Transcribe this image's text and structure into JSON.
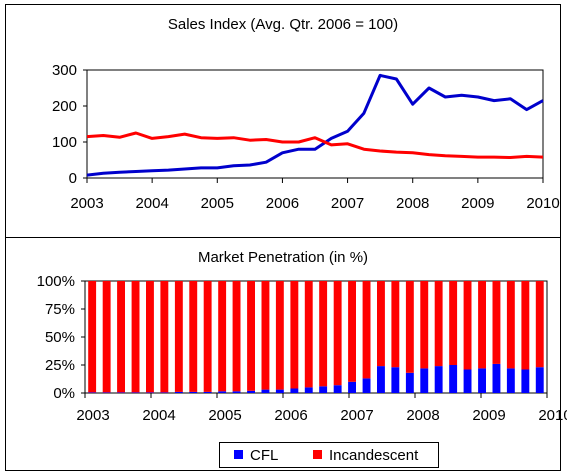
{
  "chart_data": [
    {
      "type": "line",
      "title": "Sales Index (Avg. Qtr. 2006 = 100)",
      "xlabel": "",
      "ylabel": "",
      "x_ticks": [
        "2003",
        "2004",
        "2005",
        "2006",
        "2007",
        "2008",
        "2009",
        "2010"
      ],
      "xlim": [
        2003,
        2010
      ],
      "y_ticks": [
        "0",
        "100",
        "200",
        "300"
      ],
      "ylim": [
        0,
        300
      ],
      "grid": false,
      "series": [
        {
          "color": "#0000cc",
          "x": [
            2003.0,
            2003.25,
            2003.5,
            2003.75,
            2004.0,
            2004.25,
            2004.5,
            2004.75,
            2005.0,
            2005.25,
            2005.5,
            2005.75,
            2006.0,
            2006.25,
            2006.5,
            2006.75,
            2007.0,
            2007.25,
            2007.5,
            2007.75,
            2008.0,
            2008.25,
            2008.5,
            2008.75,
            2009.0,
            2009.25,
            2009.5,
            2009.75,
            2010.0
          ],
          "values": [
            8,
            13,
            16,
            18,
            20,
            22,
            25,
            28,
            28,
            34,
            36,
            44,
            70,
            80,
            80,
            110,
            130,
            180,
            285,
            275,
            205,
            250,
            225,
            230,
            225,
            215,
            220,
            190,
            215
          ]
        },
        {
          "color": "#ff0000",
          "x": [
            2003.0,
            2003.25,
            2003.5,
            2003.75,
            2004.0,
            2004.25,
            2004.5,
            2004.75,
            2005.0,
            2005.25,
            2005.5,
            2005.75,
            2006.0,
            2006.25,
            2006.5,
            2006.75,
            2007.0,
            2007.25,
            2007.5,
            2007.75,
            2008.0,
            2008.25,
            2008.5,
            2008.75,
            2009.0,
            2009.25,
            2009.5,
            2009.75,
            2010.0
          ],
          "values": [
            115,
            118,
            113,
            125,
            110,
            115,
            122,
            112,
            110,
            112,
            105,
            107,
            100,
            100,
            112,
            92,
            95,
            80,
            75,
            72,
            70,
            65,
            62,
            60,
            58,
            58,
            57,
            60,
            58
          ]
        }
      ]
    },
    {
      "type": "bar",
      "stacked": true,
      "title": "Market Penetration (in %)",
      "xlabel": "",
      "ylabel": "",
      "x_ticks": [
        "2003",
        "2004",
        "2005",
        "2006",
        "2007",
        "2008",
        "2009",
        "2010"
      ],
      "y_ticks": [
        "0%",
        "25%",
        "50%",
        "75%",
        "100%"
      ],
      "ylim": [
        0,
        100
      ],
      "legend_position": "bottom",
      "series": [
        {
          "name": "CFL",
          "color": "#0000ff",
          "values": [
            0.5,
            0.5,
            0.5,
            0.5,
            0.5,
            0.5,
            1,
            1,
            1,
            1.5,
            1.5,
            2,
            3,
            3,
            4,
            5,
            6,
            7,
            10,
            13,
            24,
            23,
            18,
            22,
            24,
            25,
            21,
            22,
            26,
            22,
            21,
            23
          ]
        },
        {
          "name": "Incandescent",
          "color": "#ff0000",
          "values": [
            99.5,
            99.5,
            99.5,
            99.5,
            99.5,
            99.5,
            99,
            99,
            99,
            98.5,
            98.5,
            98,
            97,
            97,
            96,
            95,
            94,
            93,
            90,
            87,
            76,
            77,
            82,
            78,
            76,
            75,
            79,
            78,
            74,
            78,
            79,
            77
          ]
        }
      ]
    }
  ]
}
